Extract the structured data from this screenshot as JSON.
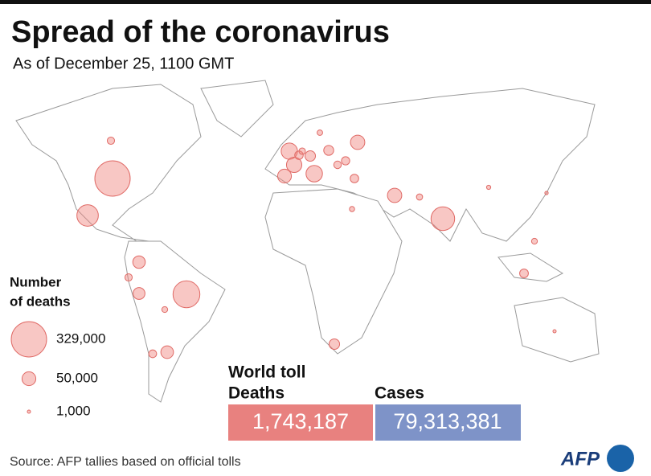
{
  "header": {
    "title": "Spread of the coronavirus",
    "subtitle": "As of December 25, 1100 GMT"
  },
  "legend": {
    "title_lines": [
      "Number",
      "of deaths"
    ],
    "sizes": [
      {
        "value": 329000,
        "label": "329,000"
      },
      {
        "value": 50000,
        "label": "50,000"
      },
      {
        "value": 1000,
        "label": "1,000"
      }
    ]
  },
  "map": {
    "deaths": [
      329000,
      190000,
      147000,
      121000,
      70000,
      71000,
      62000,
      54000,
      54000,
      50000,
      42000,
      41000,
      37000,
      29000,
      29000,
      26000,
      16000,
      20000,
      19000,
      18000,
      19000,
      9000,
      14000,
      9000,
      14000,
      3000,
      4600,
      900,
      7000,
      10000,
      15000,
      11000,
      8000
    ]
  },
  "toll": {
    "heading": "World toll",
    "deaths_label": "Deaths",
    "deaths": "1,743,187",
    "cases_label": "Cases",
    "cases": "79,313,381"
  },
  "footer": {
    "source": "Source: AFP tallies based on official tolls",
    "logo": "AFP"
  }
}
